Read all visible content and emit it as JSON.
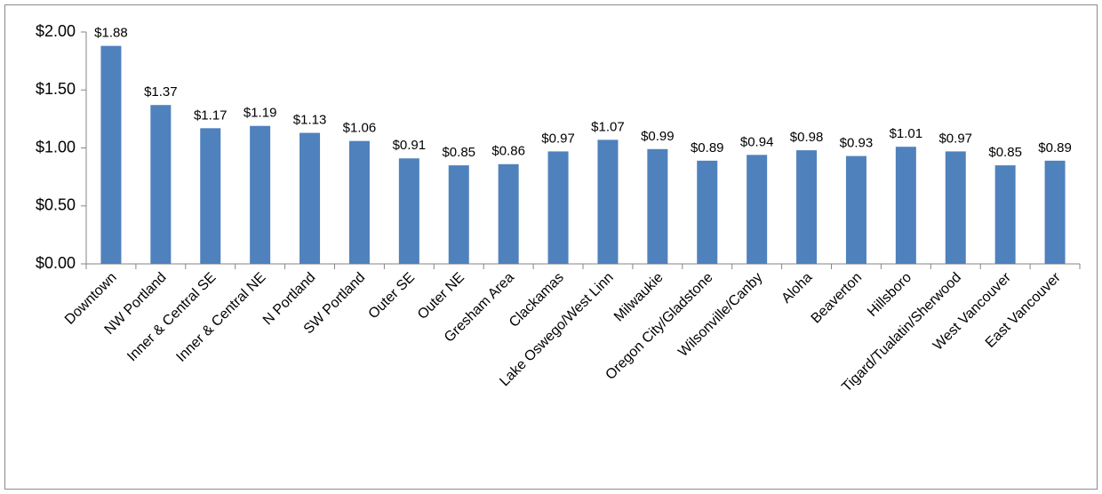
{
  "chart_data": {
    "type": "bar",
    "categories": [
      "Downtown",
      "NW Portland",
      "Inner & Central SE",
      "Inner & Central NE",
      "N Portland",
      "SW Portland",
      "Outer SE",
      "Outer NE",
      "Gresham Area",
      "Clackamas",
      "Lake Oswego/West Linn",
      "Milwaukie",
      "Oregon City/Gladstone",
      "Wilsonville/Canby",
      "Aloha",
      "Beaverton",
      "Hillsboro",
      "Tigard/Tualatin/Sherwood",
      "West Vancouver",
      "East Vancouver"
    ],
    "values": [
      1.88,
      1.37,
      1.17,
      1.19,
      1.13,
      1.06,
      0.91,
      0.85,
      0.86,
      0.97,
      1.07,
      0.99,
      0.89,
      0.94,
      0.98,
      0.93,
      1.01,
      0.97,
      0.85,
      0.89
    ],
    "value_labels": [
      "$1.88",
      "$1.37",
      "$1.17",
      "$1.19",
      "$1.13",
      "$1.06",
      "$0.91",
      "$0.85",
      "$0.86",
      "$0.97",
      "$1.07",
      "$0.99",
      "$0.89",
      "$0.94",
      "$0.98",
      "$0.93",
      "$1.01",
      "$0.97",
      "$0.85",
      "$0.89"
    ],
    "color": "#4f81bd",
    "ylim": [
      0,
      2
    ],
    "yticks": [
      {
        "value": 0,
        "label": "$0.00"
      },
      {
        "value": 0.5,
        "label": "$0.50"
      },
      {
        "value": 1,
        "label": "$1.00"
      },
      {
        "value": 1.5,
        "label": "$1.50"
      },
      {
        "value": 2,
        "label": "$2.00"
      }
    ],
    "grid": false
  }
}
